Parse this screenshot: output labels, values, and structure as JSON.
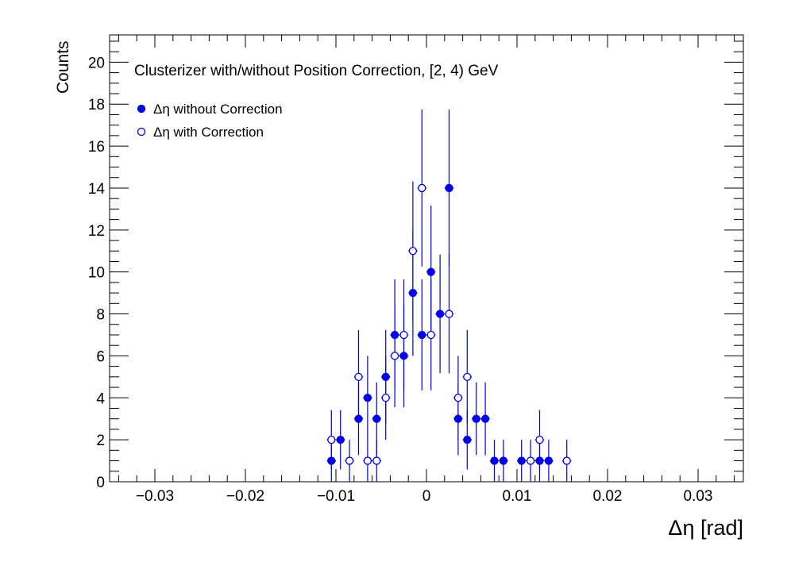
{
  "chart_data": {
    "type": "scatter",
    "title": "Clusterizer with/without Position Correction, [2, 4) GeV",
    "xlabel": "Δη  [rad]",
    "ylabel": "Counts",
    "xlim": [
      -0.035,
      0.035
    ],
    "ylim": [
      0,
      21.3
    ],
    "x_ticks": [
      -0.03,
      -0.02,
      -0.01,
      0,
      0.01,
      0.02,
      0.03
    ],
    "x_tick_labels": [
      "−0.03",
      "−0.02",
      "−0.01",
      "0",
      "0.01",
      "0.02",
      "0.03"
    ],
    "y_ticks": [
      0,
      2,
      4,
      6,
      8,
      10,
      12,
      14,
      16,
      18,
      20
    ],
    "y_tick_labels": [
      "0",
      "2",
      "4",
      "6",
      "8",
      "10",
      "12",
      "14",
      "16",
      "18",
      "20"
    ],
    "grid": false,
    "legend_position": "top-left",
    "bin_width": 0.001,
    "series": [
      {
        "name": "Δη without Correction",
        "marker": "filled-circle",
        "color": "#0000e6",
        "x": [
          -0.0105,
          -0.0095,
          -0.0075,
          -0.0065,
          -0.0055,
          -0.0045,
          -0.0035,
          -0.0025,
          -0.0015,
          -0.0005,
          0.0005,
          0.0015,
          0.0025,
          0.0035,
          0.0045,
          0.0055,
          0.0065,
          0.0075,
          0.0085,
          0.0105,
          0.0125,
          0.0135
        ],
        "y": [
          1,
          2,
          3,
          4,
          3,
          5,
          7,
          6,
          9,
          7,
          10,
          8,
          14,
          3,
          2,
          3,
          3,
          1,
          1,
          1,
          1,
          1
        ]
      },
      {
        "name": "Δη with Correction",
        "marker": "open-circle",
        "color": "#0000e6",
        "x": [
          -0.0105,
          -0.0085,
          -0.0075,
          -0.0065,
          -0.0055,
          -0.0045,
          -0.0035,
          -0.0025,
          -0.0015,
          -0.0005,
          0.0005,
          0.0025,
          0.0035,
          0.0045,
          0.0115,
          0.0125,
          0.0155
        ],
        "y": [
          2,
          1,
          5,
          1,
          1,
          4,
          6,
          7,
          11,
          14,
          7,
          8,
          4,
          5,
          1,
          2,
          1
        ]
      }
    ]
  }
}
